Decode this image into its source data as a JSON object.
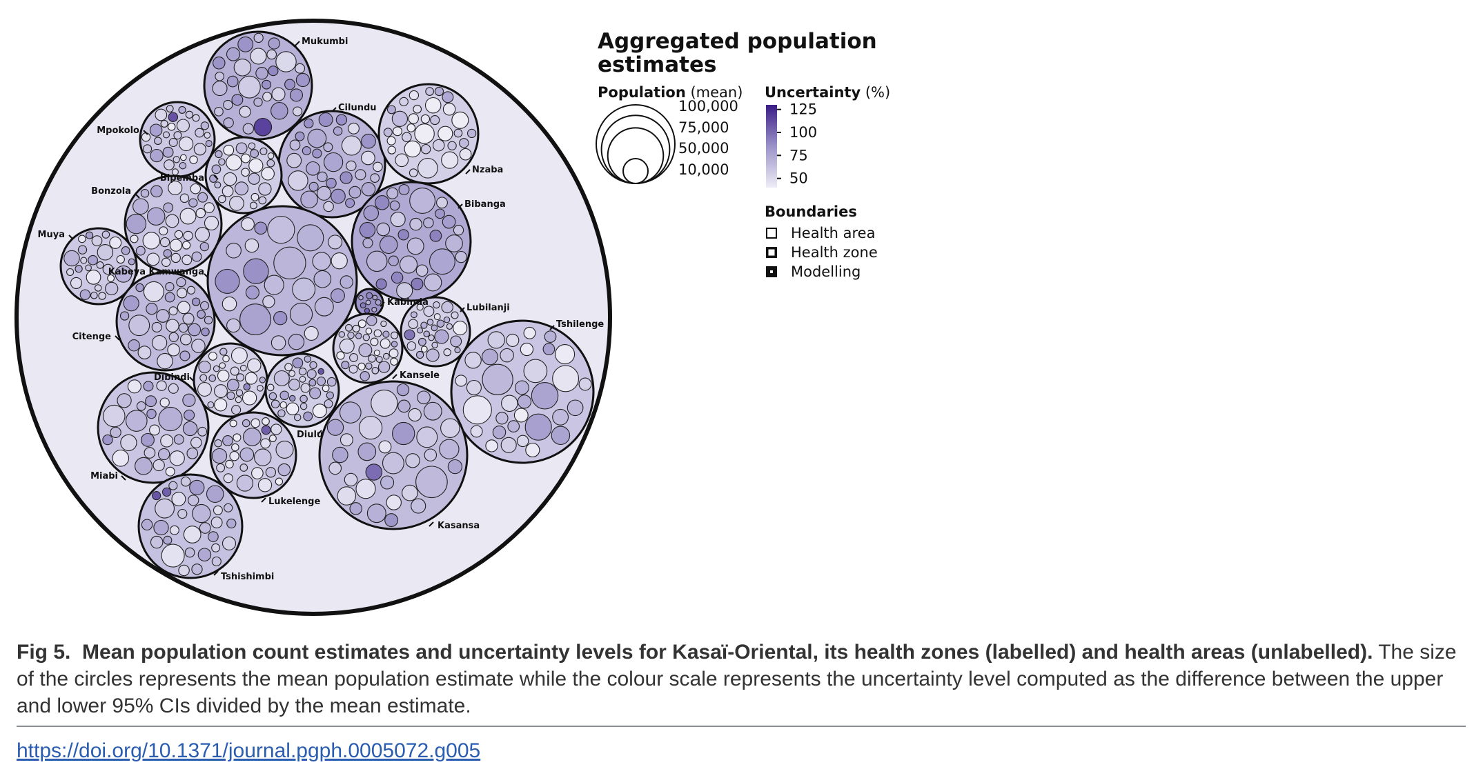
{
  "chart_data": {
    "type": "circle-packing",
    "title": "Aggregated population estimates",
    "region": "Kasaï-Oriental",
    "size_legend": {
      "label_bold": "Population",
      "label_rest": " (mean)",
      "values": [
        100000,
        75000,
        50000,
        10000
      ],
      "tick_labels": [
        "100,000",
        "75,000",
        "50,000",
        "10,000"
      ]
    },
    "colour_legend": {
      "label_bold": "Uncertainty",
      "label_rest": " (%)",
      "ticks": [
        125,
        100,
        75,
        50
      ],
      "tick_labels": [
        "125",
        "100",
        "75",
        "50"
      ],
      "color_low": "#e8e6f3",
      "color_high": "#3a1c86"
    },
    "boundaries_legend": {
      "title": "Boundaries",
      "items": [
        {
          "label": "Health area",
          "stroke": 2
        },
        {
          "label": "Health zone",
          "stroke": 3.5
        },
        {
          "label": "Modelling",
          "stroke": 6
        }
      ]
    },
    "health_zones": [
      {
        "name": "Mukumbi",
        "uncertainty": 70
      },
      {
        "name": "Cilundu",
        "uncertainty": 68
      },
      {
        "name": "Mpokolo",
        "uncertainty": 58
      },
      {
        "name": "Nzaba",
        "uncertainty": 55
      },
      {
        "name": "Bipemba",
        "uncertainty": 56
      },
      {
        "name": "Bonzola",
        "uncertainty": 60
      },
      {
        "name": "Bibanga",
        "uncertainty": 74
      },
      {
        "name": "Muya",
        "uncertainty": 58
      },
      {
        "name": "Kabeya Kamwanga",
        "uncertainty": 67
      },
      {
        "name": "Kabinda",
        "uncertainty": 85
      },
      {
        "name": "Lubilanji",
        "uncertainty": 55
      },
      {
        "name": "Citenge",
        "uncertainty": 65
      },
      {
        "name": "Tshilenge",
        "uncertainty": 60
      },
      {
        "name": "Kansele",
        "uncertainty": 55
      },
      {
        "name": "Dibindi",
        "uncertainty": 55
      },
      {
        "name": "Diulu",
        "uncertainty": 56
      },
      {
        "name": "Miabi",
        "uncertainty": 60
      },
      {
        "name": "Kasansa",
        "uncertainty": 64
      },
      {
        "name": "Lukelenge",
        "uncertainty": 58
      },
      {
        "name": "Tshishimbi",
        "uncertainty": 62
      }
    ]
  },
  "caption": {
    "label": "Fig 5.",
    "title": "Mean population count estimates and uncertainty levels for Kasaï-Oriental, its health zones (labelled) and health areas (unlabelled).",
    "text": " The size of the circles represents the mean population estimate while the colour scale represents the uncertainty level computed as the difference between the upper and lower 95% CIs divided by the mean estimate."
  },
  "doi": "https://doi.org/10.1371/journal.pgph.0005072.g005"
}
